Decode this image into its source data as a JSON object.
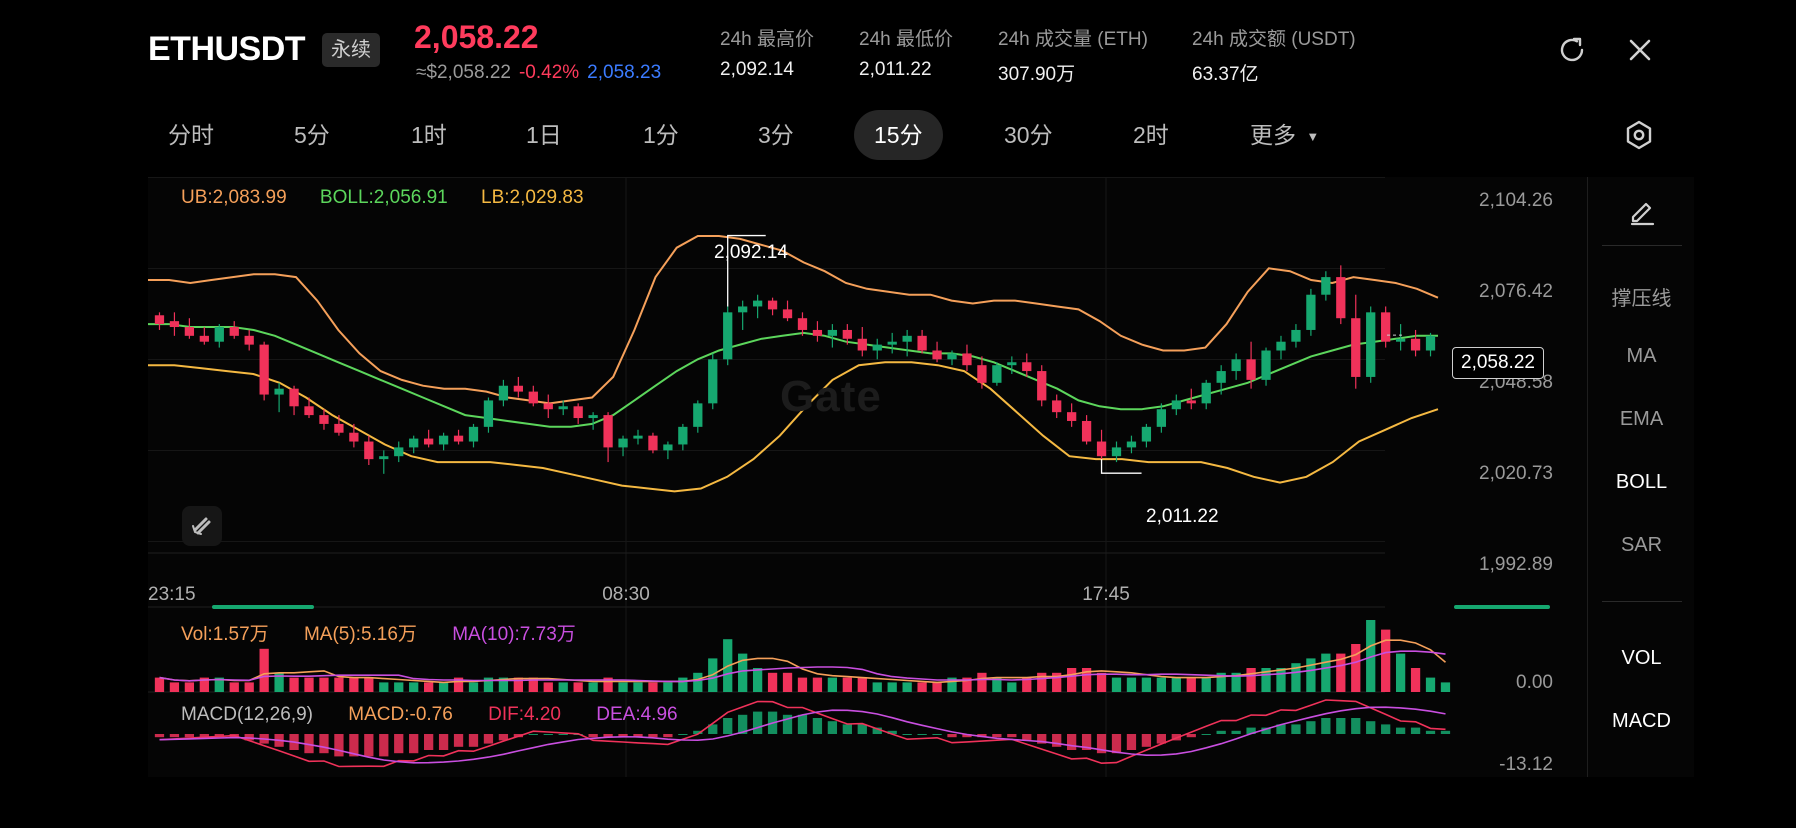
{
  "header": {
    "symbol": "ETHUSDT",
    "contract_tag": "永续",
    "last_price": "2,058.22",
    "approx_usd": "≈$2,058.22",
    "change_pct": "-0.42%",
    "mark_price": "2,058.23",
    "stats": [
      {
        "label": "24h 最高价",
        "value": "2,092.14"
      },
      {
        "label": "24h 最低价",
        "value": "2,011.22"
      },
      {
        "label": "24h 成交量 (ETH)",
        "value": "307.90万"
      },
      {
        "label": "24h 成交额 (USDT)",
        "value": "63.37亿"
      }
    ],
    "icons": [
      "refresh-icon",
      "close-icon"
    ]
  },
  "tabs": [
    {
      "label": "分时",
      "active": false
    },
    {
      "label": "5分",
      "active": false
    },
    {
      "label": "1时",
      "active": false
    },
    {
      "label": "1日",
      "active": false
    },
    {
      "label": "1分",
      "active": false
    },
    {
      "label": "3分",
      "active": false
    },
    {
      "label": "15分",
      "active": true
    },
    {
      "label": "30分",
      "active": false
    },
    {
      "label": "2时",
      "active": false
    },
    {
      "label": "更多",
      "active": false
    }
  ],
  "legends": {
    "boll": {
      "ub": "UB:2,083.99",
      "boll": "BOLL:2,056.91",
      "lb": "LB:2,029.83"
    },
    "vol": {
      "vol": "Vol:1.57万",
      "ma5": "MA(5):5.16万",
      "ma10": "MA(10):7.73万"
    },
    "macd": {
      "title": "MACD(12,26,9)",
      "macd": "MACD:-0.76",
      "dif": "DIF:4.20",
      "dea": "DEA:4.96"
    }
  },
  "price_axis": [
    "2,104.26",
    "2,076.42",
    "2,048.58",
    "2,020.73",
    "1,992.89"
  ],
  "time_axis": [
    "23:15",
    "08:30",
    "17:45"
  ],
  "vol_axis": "0.00",
  "macd_axis": "-13.12",
  "annotations": {
    "high": "2,092.14",
    "low": "2,011.22",
    "current": "2,058.22"
  },
  "watermark": "Gate",
  "right_panel": {
    "main_indicators": [
      {
        "label": "撑压线",
        "on": false
      },
      {
        "label": "MA",
        "on": false
      },
      {
        "label": "EMA",
        "on": false
      },
      {
        "label": "BOLL",
        "on": true
      },
      {
        "label": "SAR",
        "on": false
      }
    ],
    "sub_indicators": [
      {
        "label": "VOL",
        "on": true
      },
      {
        "label": "MACD",
        "on": true
      }
    ]
  },
  "colors": {
    "up": "#16a870",
    "down": "#f0325a",
    "ub": "#f5a05a",
    "mid": "#5cd65c",
    "lb": "#f5b942",
    "ma10": "#c94fe0",
    "dea": "#c94fe0",
    "dif": "#f0325a",
    "accent_blue": "#3b7bff"
  },
  "chart_data": {
    "type": "candlestick",
    "price_range": [
      1992.89,
      2104.26
    ],
    "candles": [
      [
        2065,
        2066,
        2060,
        2062
      ],
      [
        2063,
        2066,
        2058,
        2061
      ],
      [
        2061,
        2064,
        2057,
        2058
      ],
      [
        2058,
        2061,
        2055,
        2056
      ],
      [
        2056,
        2062,
        2054,
        2061
      ],
      [
        2061,
        2063,
        2057,
        2058
      ],
      [
        2058,
        2060,
        2053,
        2055
      ],
      [
        2055,
        2056,
        2036,
        2038
      ],
      [
        2038,
        2042,
        2032,
        2040
      ],
      [
        2040,
        2041,
        2031,
        2034
      ],
      [
        2034,
        2037,
        2030,
        2031
      ],
      [
        2031,
        2033,
        2026,
        2028
      ],
      [
        2028,
        2031,
        2024,
        2025
      ],
      [
        2025,
        2028,
        2020,
        2022
      ],
      [
        2022,
        2024,
        2014,
        2016
      ],
      [
        2016,
        2019,
        2011,
        2017
      ],
      [
        2017,
        2022,
        2015,
        2020
      ],
      [
        2020,
        2024,
        2018,
        2023
      ],
      [
        2023,
        2026,
        2020,
        2021
      ],
      [
        2021,
        2025,
        2019,
        2024
      ],
      [
        2024,
        2026,
        2021,
        2022
      ],
      [
        2022,
        2028,
        2020,
        2027
      ],
      [
        2027,
        2037,
        2025,
        2036
      ],
      [
        2036,
        2043,
        2034,
        2041
      ],
      [
        2041,
        2044,
        2037,
        2039
      ],
      [
        2039,
        2041,
        2034,
        2035
      ],
      [
        2035,
        2038,
        2030,
        2033
      ],
      [
        2033,
        2036,
        2031,
        2034
      ],
      [
        2034,
        2035,
        2028,
        2030
      ],
      [
        2030,
        2032,
        2026,
        2031
      ],
      [
        2031,
        2032,
        2015,
        2020
      ],
      [
        2020,
        2024,
        2017,
        2023
      ],
      [
        2023,
        2026,
        2021,
        2024
      ],
      [
        2024,
        2025,
        2018,
        2019
      ],
      [
        2019,
        2022,
        2016,
        2021
      ],
      [
        2021,
        2028,
        2019,
        2027
      ],
      [
        2027,
        2036,
        2025,
        2035
      ],
      [
        2035,
        2052,
        2033,
        2050
      ],
      [
        2050,
        2068,
        2048,
        2066
      ],
      [
        2066,
        2070,
        2060,
        2068
      ],
      [
        2068,
        2072,
        2064,
        2070
      ],
      [
        2070,
        2071,
        2065,
        2067
      ],
      [
        2067,
        2070,
        2063,
        2064
      ],
      [
        2064,
        2066,
        2058,
        2060
      ],
      [
        2060,
        2063,
        2056,
        2058
      ],
      [
        2058,
        2062,
        2054,
        2060
      ],
      [
        2060,
        2062,
        2055,
        2057
      ],
      [
        2057,
        2061,
        2051,
        2053
      ],
      [
        2053,
        2057,
        2050,
        2055
      ],
      [
        2055,
        2059,
        2052,
        2056
      ],
      [
        2056,
        2060,
        2051,
        2058
      ],
      [
        2058,
        2060,
        2052,
        2053
      ],
      [
        2053,
        2056,
        2049,
        2050
      ],
      [
        2050,
        2053,
        2048,
        2052
      ],
      [
        2052,
        2055,
        2046,
        2048
      ],
      [
        2048,
        2051,
        2040,
        2042
      ],
      [
        2042,
        2049,
        2041,
        2048
      ],
      [
        2048,
        2051,
        2045,
        2049
      ],
      [
        2049,
        2052,
        2044,
        2046
      ],
      [
        2046,
        2048,
        2034,
        2036
      ],
      [
        2036,
        2038,
        2030,
        2032
      ],
      [
        2032,
        2035,
        2027,
        2029
      ],
      [
        2029,
        2031,
        2021,
        2022
      ],
      [
        2022,
        2026,
        2016,
        2017
      ],
      [
        2017,
        2022,
        2015,
        2020
      ],
      [
        2020,
        2024,
        2018,
        2022
      ],
      [
        2022,
        2028,
        2020,
        2027
      ],
      [
        2027,
        2035,
        2025,
        2033
      ],
      [
        2033,
        2038,
        2031,
        2036
      ],
      [
        2036,
        2040,
        2033,
        2035
      ],
      [
        2035,
        2043,
        2033,
        2042
      ],
      [
        2042,
        2048,
        2038,
        2046
      ],
      [
        2046,
        2052,
        2043,
        2050
      ],
      [
        2050,
        2056,
        2040,
        2043
      ],
      [
        2043,
        2054,
        2041,
        2053
      ],
      [
        2053,
        2058,
        2050,
        2056
      ],
      [
        2056,
        2062,
        2054,
        2060
      ],
      [
        2060,
        2074,
        2058,
        2072
      ],
      [
        2072,
        2080,
        2070,
        2078
      ],
      [
        2078,
        2082,
        2062,
        2064
      ],
      [
        2064,
        2072,
        2040,
        2044
      ],
      [
        2044,
        2068,
        2042,
        2066
      ],
      [
        2066,
        2068,
        2054,
        2056
      ],
      [
        2056,
        2062,
        2053,
        2057
      ],
      [
        2057,
        2060,
        2051,
        2053
      ],
      [
        2053,
        2059,
        2051,
        2058
      ]
    ],
    "boll_ub": [
      2077,
      2077,
      2076,
      2077,
      2078,
      2079,
      2079,
      2078,
      2070,
      2060,
      2052,
      2046,
      2043,
      2041,
      2040,
      2040,
      2039,
      2037,
      2036,
      2035,
      2036,
      2037,
      2044,
      2060,
      2078,
      2088,
      2092,
      2092,
      2091,
      2089,
      2087,
      2083,
      2080,
      2076,
      2074,
      2073,
      2072,
      2072,
      2070,
      2069,
      2070,
      2070,
      2069,
      2068,
      2067,
      2063,
      2058,
      2055,
      2053,
      2053,
      2054,
      2062,
      2073,
      2081,
      2080,
      2077,
      2076,
      2078,
      2077,
      2076,
      2074,
      2071
    ],
    "boll_mid": [
      2062,
      2062,
      2061,
      2061,
      2061,
      2060,
      2058,
      2055,
      2052,
      2049,
      2046,
      2043,
      2040,
      2037,
      2034,
      2031,
      2030,
      2029,
      2028,
      2027,
      2027,
      2028,
      2031,
      2036,
      2041,
      2046,
      2050,
      2053,
      2055,
      2057,
      2058,
      2059,
      2058,
      2056,
      2055,
      2054,
      2053,
      2052,
      2052,
      2051,
      2049,
      2046,
      2043,
      2040,
      2036,
      2034,
      2033,
      2033,
      2034,
      2036,
      2038,
      2040,
      2042,
      2045,
      2048,
      2051,
      2053,
      2055,
      2056,
      2057,
      2058,
      2058
    ],
    "boll_lb": [
      2048,
      2048,
      2047,
      2046,
      2045,
      2042,
      2037,
      2031,
      2026,
      2021,
      2017,
      2015,
      2015,
      2015,
      2014,
      2013,
      2011,
      2009,
      2007,
      2006,
      2005,
      2006,
      2010,
      2016,
      2024,
      2034,
      2043,
      2048,
      2049,
      2049,
      2048,
      2046,
      2040,
      2032,
      2024,
      2017,
      2016,
      2016,
      2015,
      2015,
      2015,
      2013,
      2010,
      2008,
      2010,
      2015,
      2022,
      2026,
      2030,
      2033
    ],
    "volume": [
      3,
      2,
      2,
      3,
      3,
      2,
      2,
      9,
      4,
      3,
      3,
      3,
      3,
      3,
      3,
      2,
      2,
      2,
      2,
      2,
      3,
      2,
      3,
      3,
      3,
      3,
      2,
      2,
      2,
      2,
      3,
      2,
      2,
      2,
      2,
      3,
      4,
      7,
      11,
      8,
      5,
      4,
      4,
      3,
      3,
      3,
      3,
      3,
      2,
      2,
      2,
      2,
      2,
      3,
      3,
      4,
      3,
      2,
      3,
      4,
      4,
      5,
      5,
      4,
      3,
      3,
      3,
      3,
      3,
      3,
      3,
      4,
      4,
      5,
      5,
      5,
      6,
      7,
      8,
      8,
      10,
      15,
      13,
      8,
      5,
      3,
      2
    ],
    "macd_hist": [
      -1,
      -1,
      -1,
      -1,
      -1,
      -1,
      -2,
      -3,
      -4,
      -5,
      -6,
      -6,
      -7,
      -7,
      -7,
      -7,
      -6,
      -6,
      -5,
      -5,
      -4,
      -4,
      -3,
      -2,
      -1,
      0,
      0,
      0,
      0,
      -1,
      -1,
      -1,
      -1,
      -1,
      -1,
      0,
      1,
      3,
      5,
      6,
      7,
      7,
      6,
      6,
      5,
      4,
      3,
      3,
      2,
      1,
      0,
      0,
      0,
      -1,
      -1,
      -1,
      -1,
      -1,
      -2,
      -3,
      -4,
      -5,
      -5,
      -6,
      -6,
      -5,
      -4,
      -3,
      -2,
      -1,
      0,
      1,
      1,
      2,
      2,
      3,
      3,
      4,
      5,
      5,
      5,
      4,
      3,
      2,
      2,
      1,
      1
    ]
  }
}
